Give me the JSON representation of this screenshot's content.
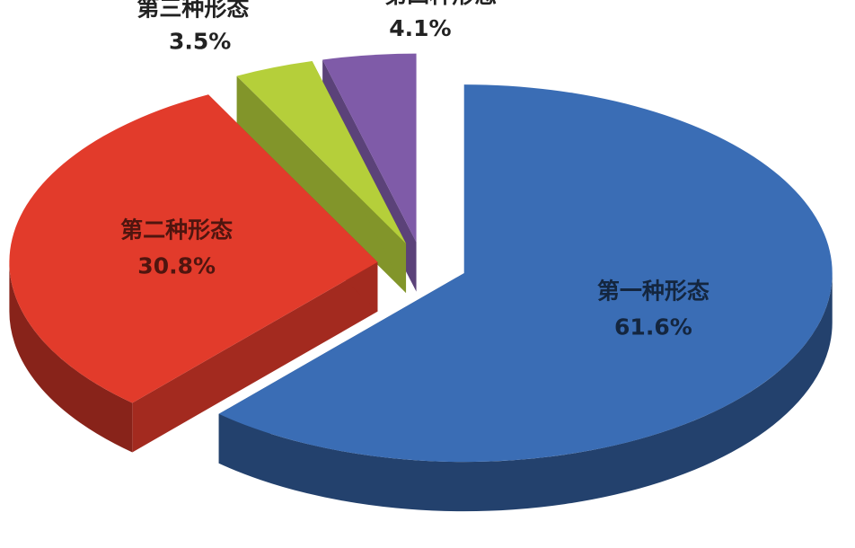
{
  "chart_data": {
    "type": "pie3d",
    "categories": [
      "第一种形态",
      "第二种形态",
      "第三种形态",
      "第四种形态"
    ],
    "values": [
      61.6,
      30.8,
      3.5,
      4.1
    ],
    "value_labels": [
      "61.6%",
      "30.8%",
      "3.5%",
      "4.1%"
    ],
    "colors": [
      "#3a6db5",
      "#e23b2b",
      "#b5cf3a",
      "#7f5ba8"
    ]
  }
}
